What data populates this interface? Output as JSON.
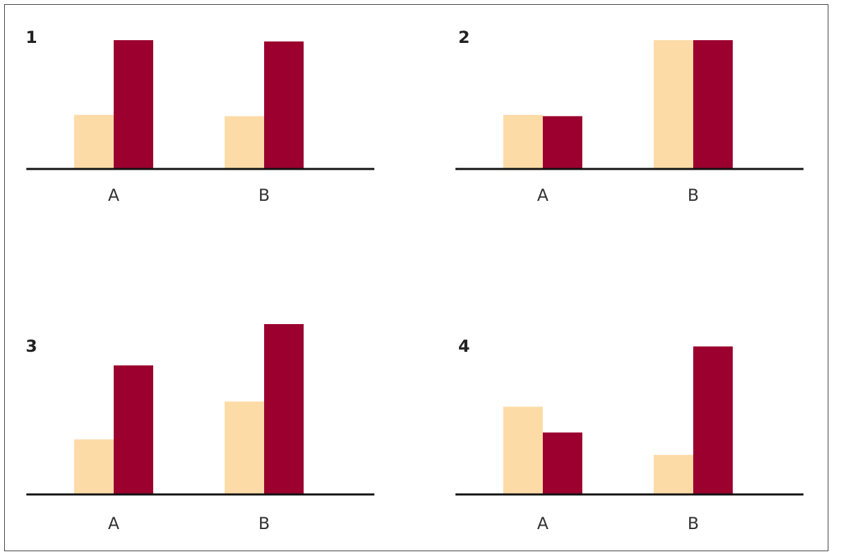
{
  "colors": {
    "series_a": "#FDDBA7",
    "series_b": "#9B002E",
    "axis": "#111111",
    "frame": "#444444"
  },
  "chart_data": [
    {
      "type": "bar",
      "panel_label": "1",
      "categories": [
        "A",
        "B"
      ],
      "series": [
        {
          "values": [
            42,
            41
          ]
        },
        {
          "values": [
            100,
            99
          ]
        }
      ],
      "ylim": [
        0,
        100
      ],
      "grid": false,
      "legend": "none"
    },
    {
      "type": "bar",
      "panel_label": "2",
      "categories": [
        "A",
        "B"
      ],
      "series": [
        {
          "values": [
            42,
            100
          ]
        },
        {
          "values": [
            41,
            100
          ]
        }
      ],
      "ylim": [
        0,
        100
      ],
      "grid": false,
      "legend": "none"
    },
    {
      "type": "bar",
      "panel_label": "3",
      "categories": [
        "A",
        "B"
      ],
      "series": [
        {
          "values": [
            32,
            54
          ]
        },
        {
          "values": [
            75,
            99
          ]
        }
      ],
      "ylim": [
        0,
        100
      ],
      "grid": false,
      "legend": "none"
    },
    {
      "type": "bar",
      "panel_label": "4",
      "categories": [
        "A",
        "B"
      ],
      "series": [
        {
          "values": [
            51,
            23
          ]
        },
        {
          "values": [
            36,
            86
          ]
        }
      ],
      "ylim": [
        0,
        100
      ],
      "grid": false,
      "legend": "none"
    }
  ]
}
